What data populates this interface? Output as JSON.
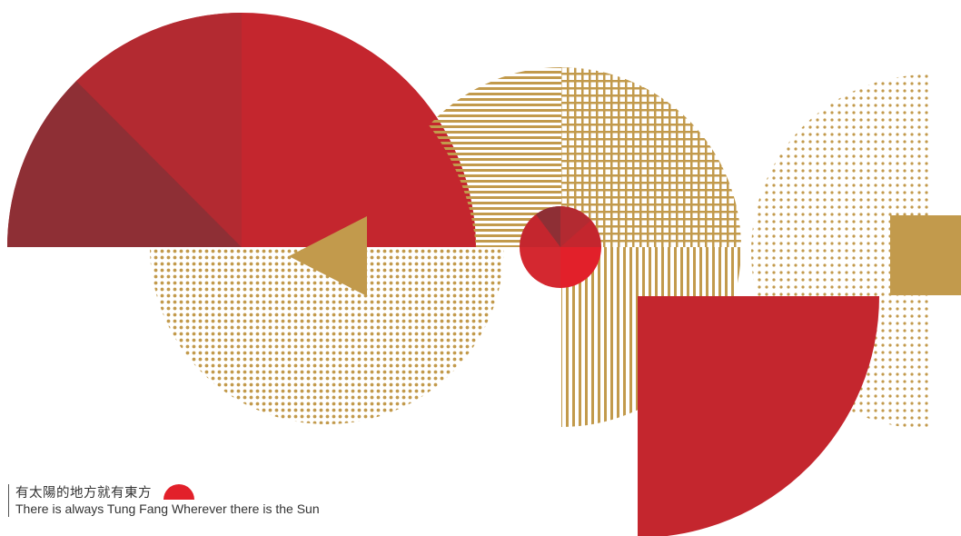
{
  "tagline": {
    "chinese": "有太陽的地方就有東方",
    "english": "There is always Tung Fang Wherever there is the Sun"
  },
  "colors": {
    "red": "#c4262e",
    "dark_red": "#8e2f35",
    "bright_red": "#e2202a",
    "gold": "#c29a4c",
    "background": "#ffffff"
  }
}
